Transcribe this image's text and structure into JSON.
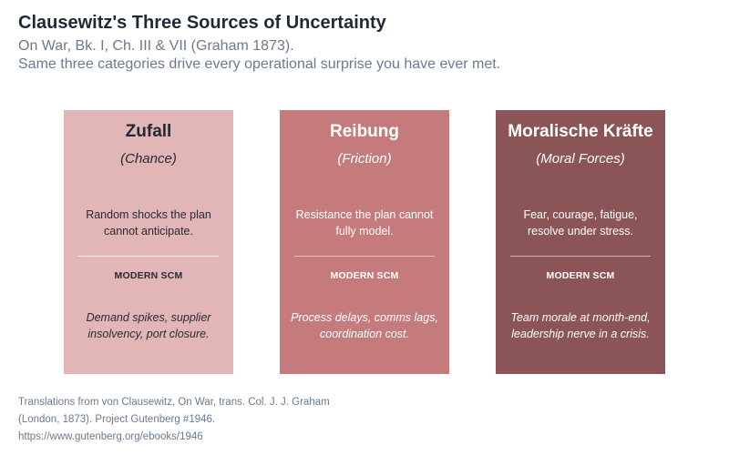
{
  "header": {
    "title": "Clausewitz's Three Sources of Uncertainty",
    "subtitle": "On War, Bk. I, Ch. III & VII (Graham 1873).",
    "tagline": "Same three categories drive every operational surprise you have ever met."
  },
  "cards": [
    {
      "name": "Zufall",
      "translation": "(Chance)",
      "description": "Random shocks the plan cannot anticipate.",
      "section_label": "MODERN SCM",
      "modern_example": "Demand spikes, supplier insolvency, port closure.",
      "color": "#e2b5b7"
    },
    {
      "name": "Reibung",
      "translation": "(Friction)",
      "description": "Resistance the plan cannot fully model.",
      "section_label": "MODERN SCM",
      "modern_example": "Process delays, comms lags, coordination cost.",
      "color": "#c57b7c"
    },
    {
      "name": "Moralische Kräfte",
      "translation": "(Moral Forces)",
      "description": "Fear, courage, fatigue, resolve under stress.",
      "section_label": "MODERN SCM",
      "modern_example": "Team morale at month-end, leadership nerve in a crisis.",
      "color": "#8b5456"
    }
  ],
  "footer": {
    "line1": "Translations from von Clausewitz, On War, trans. Col. J. J. Graham",
    "line2": "(London, 1873). Project Gutenberg #1946.",
    "line3": "https://www.gutenberg.org/ebooks/1946"
  }
}
